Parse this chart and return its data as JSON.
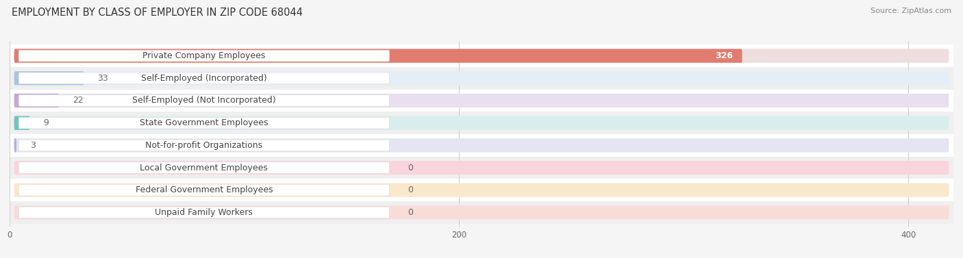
{
  "title": "EMPLOYMENT BY CLASS OF EMPLOYER IN ZIP CODE 68044",
  "source": "Source: ZipAtlas.com",
  "categories": [
    "Private Company Employees",
    "Self-Employed (Incorporated)",
    "Self-Employed (Not Incorporated)",
    "State Government Employees",
    "Not-for-profit Organizations",
    "Local Government Employees",
    "Federal Government Employees",
    "Unpaid Family Workers"
  ],
  "values": [
    326,
    33,
    22,
    9,
    3,
    0,
    0,
    0
  ],
  "bar_colors": [
    "#E07C70",
    "#A8C4E0",
    "#C4A8D4",
    "#70C4BC",
    "#B0B0D8",
    "#F090A8",
    "#F5C890",
    "#F0A898"
  ],
  "bar_bg_colors": [
    "#EEDEDD",
    "#E4EEF7",
    "#E8E0EE",
    "#D8EEEC",
    "#E4E4F2",
    "#FAD4DC",
    "#FAE8CC",
    "#F7DCD8"
  ],
  "value_label_colors": [
    "#ffffff",
    "#888888",
    "#888888",
    "#888888",
    "#888888",
    "#888888",
    "#888888",
    "#888888"
  ],
  "row_bg_even": "#ffffff",
  "row_bg_odd": "#efefef",
  "xlim": [
    0,
    420
  ],
  "xticks": [
    0,
    200,
    400
  ],
  "title_fontsize": 10.5,
  "label_fontsize": 9,
  "value_fontsize": 9,
  "source_fontsize": 8
}
